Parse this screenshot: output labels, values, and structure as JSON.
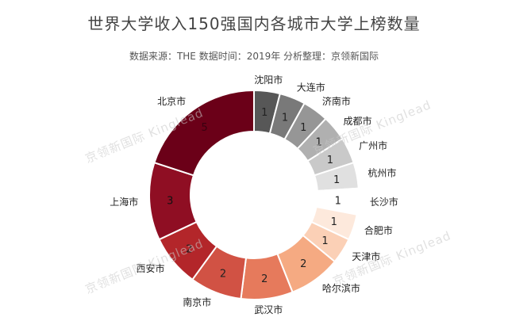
{
  "header": {
    "title": "世界大学收入150强国内各城市大学上榜数量",
    "subtitle": "数据来源：THE  数据时间：2019年  分析整理：京领新国际"
  },
  "watermark": {
    "text": "京领新国际 Kinglead"
  },
  "chart_data": {
    "type": "pie",
    "style": "donut",
    "title": "世界大学收入150强国内各城市大学上榜数量",
    "categories": [
      "沈阳市",
      "大连市",
      "济南市",
      "成都市",
      "广州市",
      "杭州市",
      "长沙市",
      "合肥市",
      "天津市",
      "哈尔滨市",
      "武汉市",
      "南京市",
      "西安市",
      "上海市",
      "北京市"
    ],
    "values": [
      1,
      1,
      1,
      1,
      1,
      1,
      1,
      1,
      1,
      2,
      2,
      2,
      2,
      3,
      5
    ],
    "colors": [
      "#575757",
      "#797979",
      "#969696",
      "#b0b0b0",
      "#c9c9c9",
      "#e0e0e0",
      "#ffffff",
      "#fde9dc",
      "#fbd0b6",
      "#f5aa82",
      "#e67a5c",
      "#d15244",
      "#b3262a",
      "#8f0e23",
      "#6b0018"
    ],
    "label_text_colors": [
      "#222222",
      "#222222",
      "#222222",
      "#222222",
      "#222222",
      "#222222",
      "#222222",
      "#222222",
      "#222222",
      "#222222",
      "#222222",
      "#222222",
      "#222222",
      "#111111",
      "#3a0010"
    ],
    "legend": "labels-outside"
  }
}
